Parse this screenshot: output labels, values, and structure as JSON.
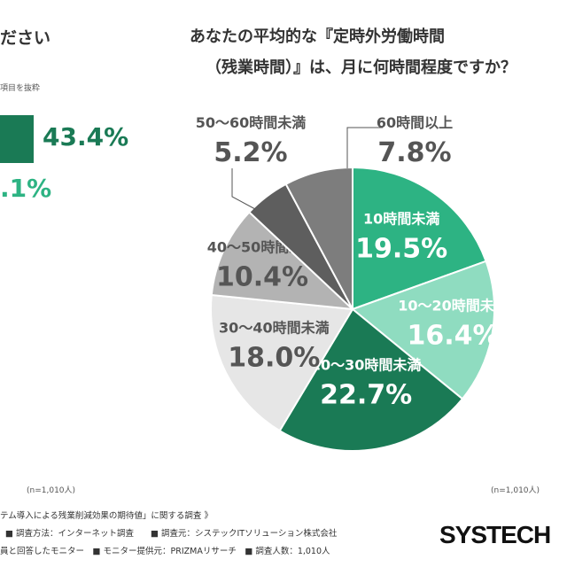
{
  "left_panel": {
    "title_fragment": "ださい",
    "note_fragment": "項目を抜粋",
    "value_1": "43.4%",
    "value_2": ".1%"
  },
  "title_line_1": "あなたの平均的な『定時外労働時間",
  "title_line_2": "（残業時間）』は、月に何時間程度ですか？",
  "n_left": "(n=1,010人)",
  "n_right": "(n=1,010人)",
  "footer": {
    "line_1": "テム導入による残業削減効果の期待値」に関する調査 》",
    "line_2": "■ 調査方法：インターネット調査　　■ 調査元：システックITソリューション株式会社",
    "line_3": "員と回答したモニター　■ モニター提供元：PRIZMAリサーチ　■ 調査人数：1,010人"
  },
  "logo_text": "SYSTECH",
  "colors": {
    "accent_dark": "#1a7a55",
    "accent_light": "#2db383"
  },
  "chart_data": {
    "type": "pie",
    "title": "あなたの平均的な『定時外労働時間（残業時間）』は、月に何時間程度ですか？",
    "start_angle_deg": 0,
    "direction": "clockwise",
    "slices": [
      {
        "label": "10時間未満",
        "value": 19.5,
        "value_label": "19.5%",
        "color": "#2db383",
        "text_color": "#ffffff"
      },
      {
        "label": "10〜20時間未満",
        "value": 16.4,
        "value_label": "16.4%",
        "color": "#8fdcc0",
        "text_color": "#ffffff"
      },
      {
        "label": "20〜30時間未満",
        "value": 22.7,
        "value_label": "22.7%",
        "color": "#1a7a55",
        "text_color": "#ffffff"
      },
      {
        "label": "30〜40時間未満",
        "value": 18.0,
        "value_label": "18.0%",
        "color": "#e6e6e6",
        "text_color": "#555555"
      },
      {
        "label": "40〜50時間未満",
        "value": 10.4,
        "value_label": "10.4%",
        "color": "#b3b3b3",
        "text_color": "#555555"
      },
      {
        "label": "50〜60時間未満",
        "value": 5.2,
        "value_label": "5.2%",
        "color": "#5e5e5e",
        "text_color": "#555555",
        "outside": true
      },
      {
        "label": "60時間以上",
        "value": 7.8,
        "value_label": "7.8%",
        "color": "#7d7d7d",
        "text_color": "#555555",
        "outside": true
      }
    ]
  }
}
